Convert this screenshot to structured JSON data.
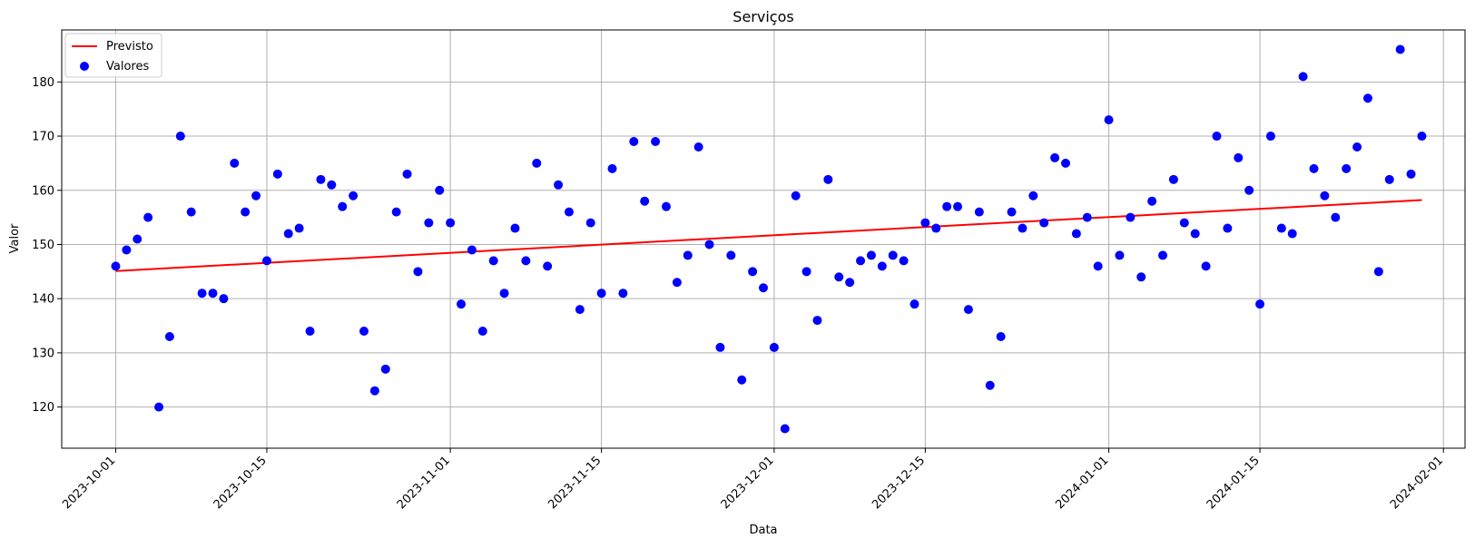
{
  "chart_data": {
    "type": "scatter",
    "title": "Serviços",
    "xlabel": "Data",
    "ylabel": "Valor",
    "xlim": [
      "2023-09-26",
      "2024-02-03"
    ],
    "ylim": [
      112.4,
      189.6
    ],
    "grid": true,
    "legend_position": "top-left",
    "x_ticks": [
      "2023-10-01",
      "2023-10-15",
      "2023-11-01",
      "2023-11-15",
      "2023-12-01",
      "2023-12-15",
      "2024-01-01",
      "2024-01-15",
      "2024-02-01"
    ],
    "y_ticks": [
      120,
      130,
      140,
      150,
      160,
      170,
      180
    ],
    "x": [
      "2023-10-01",
      "2023-10-02",
      "2023-10-03",
      "2023-10-04",
      "2023-10-05",
      "2023-10-06",
      "2023-10-07",
      "2023-10-08",
      "2023-10-09",
      "2023-10-10",
      "2023-10-11",
      "2023-10-12",
      "2023-10-13",
      "2023-10-14",
      "2023-10-15",
      "2023-10-16",
      "2023-10-17",
      "2023-10-18",
      "2023-10-19",
      "2023-10-20",
      "2023-10-21",
      "2023-10-22",
      "2023-10-23",
      "2023-10-24",
      "2023-10-25",
      "2023-10-26",
      "2023-10-27",
      "2023-10-28",
      "2023-10-29",
      "2023-10-30",
      "2023-10-31",
      "2023-11-01",
      "2023-11-02",
      "2023-11-03",
      "2023-11-04",
      "2023-11-05",
      "2023-11-06",
      "2023-11-07",
      "2023-11-08",
      "2023-11-09",
      "2023-11-10",
      "2023-11-11",
      "2023-11-12",
      "2023-11-13",
      "2023-11-14",
      "2023-11-15",
      "2023-11-16",
      "2023-11-17",
      "2023-11-18",
      "2023-11-19",
      "2023-11-20",
      "2023-11-21",
      "2023-11-22",
      "2023-11-23",
      "2023-11-24",
      "2023-11-25",
      "2023-11-26",
      "2023-11-27",
      "2023-11-28",
      "2023-11-29",
      "2023-11-30",
      "2023-12-01",
      "2023-12-02",
      "2023-12-03",
      "2023-12-04",
      "2023-12-05",
      "2023-12-06",
      "2023-12-07",
      "2023-12-08",
      "2023-12-09",
      "2023-12-10",
      "2023-12-11",
      "2023-12-12",
      "2023-12-13",
      "2023-12-14",
      "2023-12-15",
      "2023-12-16",
      "2023-12-17",
      "2023-12-18",
      "2023-12-19",
      "2023-12-20",
      "2023-12-21",
      "2023-12-22",
      "2023-12-23",
      "2023-12-24",
      "2023-12-25",
      "2023-12-26",
      "2023-12-27",
      "2023-12-28",
      "2023-12-29",
      "2023-12-30",
      "2023-12-31",
      "2024-01-01",
      "2024-01-02",
      "2024-01-03",
      "2024-01-04",
      "2024-01-05",
      "2024-01-06",
      "2024-01-07",
      "2024-01-08",
      "2024-01-09",
      "2024-01-10",
      "2024-01-11",
      "2024-01-12",
      "2024-01-13",
      "2024-01-14",
      "2024-01-15",
      "2024-01-16",
      "2024-01-17",
      "2024-01-18",
      "2024-01-19",
      "2024-01-20",
      "2024-01-21",
      "2024-01-22",
      "2024-01-23",
      "2024-01-24",
      "2024-01-25",
      "2024-01-26",
      "2024-01-27",
      "2024-01-28",
      "2024-01-29",
      "2024-01-30"
    ],
    "series": [
      {
        "name": "Valores",
        "kind": "scatter",
        "color": "#0000ff",
        "values": [
          146,
          149,
          151,
          155,
          120,
          133,
          170,
          156,
          141,
          141,
          140,
          165,
          156,
          159,
          147,
          163,
          152,
          153,
          134,
          162,
          161,
          157,
          159,
          134,
          123,
          127,
          156,
          163,
          145,
          154,
          160,
          154,
          139,
          149,
          134,
          147,
          141,
          153,
          147,
          165,
          146,
          161,
          156,
          138,
          154,
          141,
          164,
          141,
          169,
          158,
          169,
          157,
          143,
          148,
          168,
          150,
          131,
          148,
          125,
          145,
          142,
          131,
          116,
          159,
          145,
          136,
          162,
          144,
          143,
          147,
          148,
          146,
          148,
          147,
          139,
          154,
          153,
          157,
          157,
          138,
          156,
          124,
          133,
          156,
          153,
          159,
          154,
          166,
          165,
          152,
          155,
          146,
          173,
          148,
          155,
          144,
          158,
          148,
          162,
          154,
          152,
          146,
          170,
          153,
          166,
          160,
          139,
          170,
          153,
          152,
          181,
          164,
          159,
          155,
          164,
          168,
          177,
          145,
          162,
          186,
          163,
          170
        ]
      },
      {
        "name": "Previsto",
        "kind": "line",
        "color": "#ff0000",
        "x": [
          "2023-10-01",
          "2024-01-30"
        ],
        "values": [
          145.1,
          158.2
        ]
      }
    ]
  }
}
